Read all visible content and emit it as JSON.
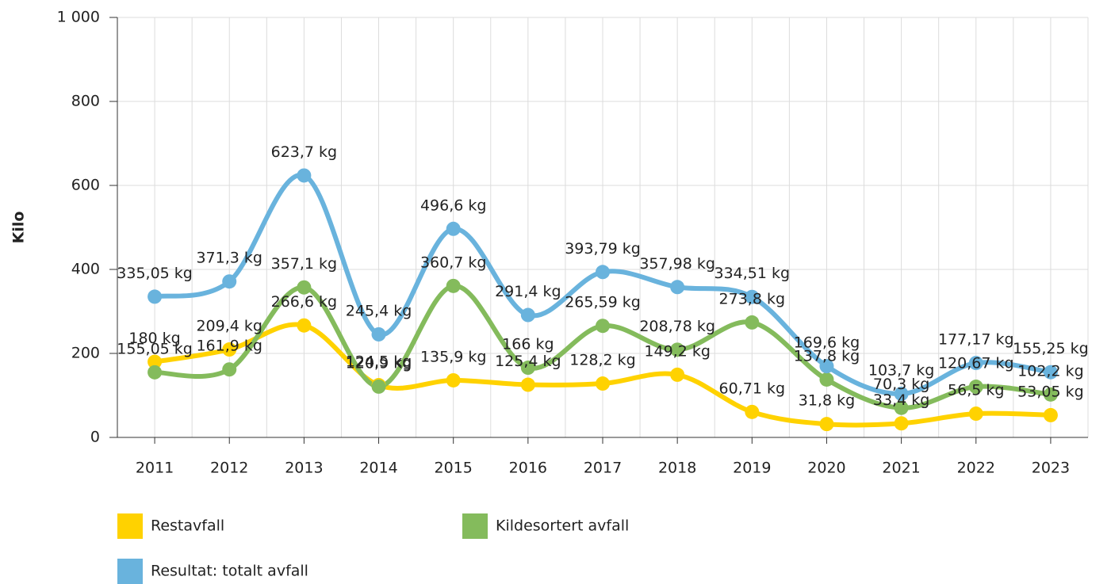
{
  "chart_data": {
    "type": "line",
    "y_label": "Kilo",
    "categories": [
      "2011",
      "2012",
      "2013",
      "2014",
      "2015",
      "2016",
      "2017",
      "2018",
      "2019",
      "2020",
      "2021",
      "2022",
      "2023"
    ],
    "ylim": [
      0,
      1000
    ],
    "yticks": [
      0,
      200,
      400,
      600,
      800,
      {
        "value": 1000,
        "label": "1 000"
      }
    ],
    "grid": true,
    "legend": "bottom",
    "series": [
      {
        "name": "Restavfall",
        "color": "#ffd200",
        "values": [
          180,
          209.4,
          266.6,
          124.5,
          135.9,
          125.4,
          128.2,
          149.2,
          60.71,
          31.8,
          33.4,
          56.5,
          53.05
        ],
        "value_labels": [
          "180 kg",
          "209,4 kg",
          "266,6 kg",
          "124,5 kg",
          "135,9 kg",
          "125,4 kg",
          "128,2 kg",
          "149,2 kg",
          "60,71 kg",
          "31,8 kg",
          "33,4 kg",
          "56,5 kg",
          "53,05 kg"
        ]
      },
      {
        "name": "Kildesortert avfall",
        "color": "#84bb5c",
        "values": [
          155.05,
          161.9,
          357.1,
          120.9,
          360.7,
          166,
          265.59,
          208.78,
          273.8,
          137.8,
          70.3,
          120.67,
          102.2
        ],
        "value_labels": [
          "155,05 kg",
          "161,9 kg",
          "357,1 kg",
          "120,9 kg",
          "360,7 kg",
          "166 kg",
          "265,59 kg",
          "208,78 kg",
          "273,8 kg",
          "137,8 kg",
          "70,3 kg",
          "120,67 kg",
          "102,2 kg"
        ]
      },
      {
        "name": "Resultat: totalt avfall",
        "color": "#69b3dd",
        "values": [
          335.05,
          371.3,
          623.7,
          245.4,
          496.6,
          291.4,
          393.79,
          357.98,
          334.51,
          169.6,
          103.7,
          177.17,
          155.25
        ],
        "value_labels": [
          "335,05 kg",
          "371,3 kg",
          "623,7 kg",
          "245,4 kg",
          "496,6 kg",
          "291,4 kg",
          "393,79 kg",
          "357,98 kg",
          "334,51 kg",
          "169,6 kg",
          "103,7 kg",
          "177,17 kg",
          "155,25 kg"
        ]
      }
    ]
  }
}
